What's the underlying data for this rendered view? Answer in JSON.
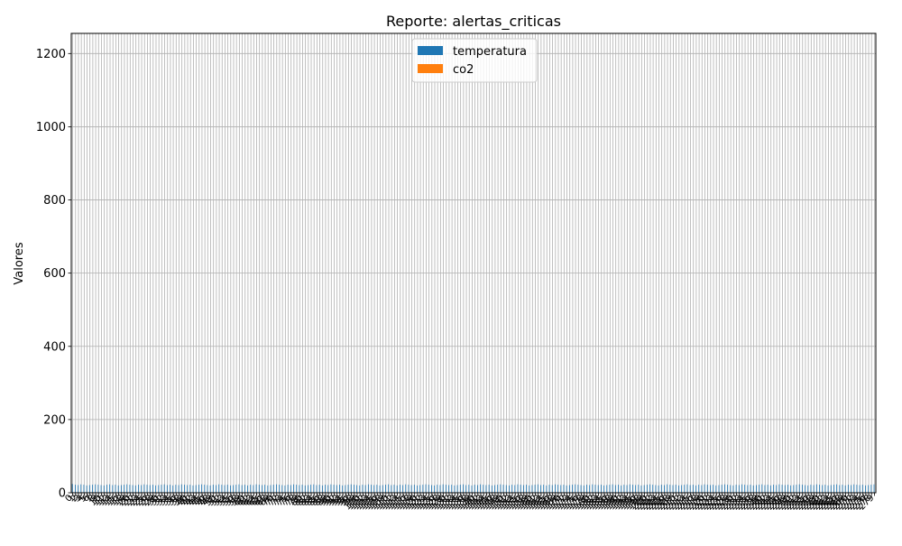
{
  "chart_data": {
    "type": "bar",
    "title": "Reporte: alertas_criticas",
    "xlabel": "",
    "ylabel": "Valores",
    "ylim": [
      0,
      1255
    ],
    "yticks": [
      0,
      200,
      400,
      600,
      800,
      1000,
      1200
    ],
    "grid": true,
    "legend_position": "top-center",
    "x_tick_rotation": 45,
    "categories": [
      "0",
      "1",
      "2",
      "3",
      "4",
      "5",
      "6",
      "7",
      "8",
      "9",
      "10",
      "11",
      "12",
      "13",
      "14",
      "15",
      "16",
      "17",
      "18",
      "19",
      "20",
      "21",
      "22",
      "23",
      "24",
      "25",
      "26",
      "27",
      "28",
      "29",
      "30",
      "31",
      "32",
      "33",
      "34",
      "35",
      "36",
      "37",
      "38",
      "39",
      "40",
      "41",
      "42",
      "43",
      "44",
      "45",
      "46",
      "47",
      "48",
      "49",
      "50",
      "51",
      "52",
      "53",
      "54",
      "55",
      "56",
      "57",
      "58",
      "59",
      "60",
      "61",
      "62",
      "63",
      "64",
      "65",
      "66",
      "67",
      "68",
      "69",
      "70",
      "71",
      "72",
      "73",
      "74",
      "75",
      "76",
      "77",
      "78",
      "79",
      "80",
      "81",
      "82",
      "83",
      "84",
      "85",
      "86",
      "87",
      "88",
      "89",
      "90",
      "91",
      "92",
      "93",
      "94",
      "95",
      "96",
      "97",
      "98",
      "99",
      "100",
      "101",
      "102",
      "103",
      "104",
      "105",
      "106",
      "107",
      "108",
      "109",
      "110",
      "111",
      "112",
      "113",
      "114",
      "115",
      "116",
      "117",
      "118",
      "119",
      "120",
      "121",
      "122",
      "123",
      "124",
      "125",
      "126",
      "127",
      "128",
      "129",
      "130",
      "131",
      "132",
      "133",
      "134",
      "135",
      "136",
      "137",
      "138",
      "139",
      "140",
      "141",
      "142",
      "143",
      "144",
      "145",
      "146",
      "147",
      "148",
      "149",
      "150",
      "151",
      "152",
      "153",
      "154",
      "155",
      "156",
      "157",
      "158",
      "159",
      "160",
      "161",
      "162",
      "163",
      "164",
      "165",
      "166",
      "167",
      "168",
      "169",
      "170",
      "171",
      "172",
      "173",
      "174",
      "175",
      "176",
      "177",
      "178",
      "179",
      "180",
      "181",
      "182",
      "183",
      "184",
      "185",
      "186",
      "187",
      "188",
      "189",
      "190",
      "191",
      "192",
      "193",
      "194",
      "195",
      "196",
      "197",
      "198",
      "199",
      "200",
      "201",
      "202",
      "203",
      "204",
      "205",
      "206",
      "207",
      "208",
      "209",
      "210",
      "211",
      "212",
      "213",
      "214",
      "215",
      "216",
      "217",
      "218",
      "219",
      "220",
      "221",
      "222",
      "223",
      "224",
      "225",
      "226",
      "227",
      "228",
      "229",
      "230",
      "231",
      "232",
      "233",
      "234",
      "235",
      "236",
      "237",
      "238",
      "239",
      "240",
      "241",
      "242",
      "243",
      "244",
      "245",
      "246",
      "247",
      "248",
      "249",
      "250",
      "251",
      "252",
      "253",
      "254",
      "255",
      "256",
      "257",
      "258",
      "259",
      "260",
      "261",
      "262",
      "263",
      "264",
      "265",
      "266",
      "267",
      "268",
      "269",
      "270",
      "271",
      "272",
      "273",
      "274",
      "275",
      "276",
      "277",
      "278",
      "279"
    ],
    "series": [
      {
        "name": "temperatura",
        "color": "#1f77b4",
        "values": [
          24,
          22,
          21,
          23,
          22,
          20,
          21,
          22,
          23,
          22,
          21,
          20,
          22,
          23,
          21,
          22,
          20,
          21,
          22,
          23,
          22,
          21,
          20,
          22,
          21,
          23,
          22,
          21,
          22,
          20,
          21,
          22,
          23,
          21,
          22,
          20,
          22,
          21,
          23,
          22,
          21,
          22,
          20,
          21,
          22,
          23,
          22,
          21,
          20,
          22,
          21,
          23,
          22,
          21,
          22,
          20,
          21,
          22,
          23,
          21,
          22,
          20,
          22,
          21,
          23,
          22,
          21,
          22,
          20,
          21,
          22,
          23,
          22,
          21,
          20,
          22,
          21,
          23,
          22,
          21,
          22,
          20,
          21,
          22,
          23,
          21,
          22,
          20,
          22,
          21,
          23,
          22,
          21,
          22,
          20,
          21,
          22,
          23,
          22,
          21,
          20,
          22,
          21,
          23,
          22,
          21,
          22,
          20,
          21,
          22,
          23,
          21,
          22,
          20,
          22,
          21,
          23,
          22,
          21,
          22,
          20,
          21,
          22,
          23,
          22,
          21,
          20,
          22,
          21,
          23,
          22,
          21,
          22,
          20,
          21,
          22,
          23,
          21,
          22,
          20,
          22,
          21,
          23,
          22,
          21,
          22,
          20,
          21,
          22,
          23,
          22,
          21,
          20,
          22,
          21,
          23,
          22,
          21,
          22,
          20,
          21,
          22,
          23,
          21,
          22,
          20,
          22,
          21,
          23,
          22,
          21,
          22,
          20,
          21,
          22,
          23,
          22,
          21,
          20,
          22,
          21,
          23,
          22,
          21,
          22,
          20,
          21,
          22,
          23,
          21,
          22,
          20,
          22,
          21,
          23,
          22,
          21,
          22,
          20,
          21,
          22,
          23,
          22,
          21,
          20,
          22,
          21,
          23,
          22,
          21,
          22,
          20,
          21,
          22,
          23,
          21,
          22,
          20,
          22,
          21,
          23,
          22,
          21,
          22,
          20,
          21,
          22,
          23,
          22,
          21,
          20,
          22,
          21,
          23,
          22,
          21,
          22,
          20,
          21,
          22,
          23,
          21,
          22,
          20,
          22,
          21,
          23,
          22,
          21,
          22,
          20,
          21,
          22,
          23,
          22,
          21,
          20,
          22,
          21,
          23,
          22,
          21,
          22,
          20,
          21,
          22,
          23,
          21,
          22,
          20,
          22,
          21,
          23,
          22,
          21,
          22,
          20,
          21,
          22,
          23
        ]
      },
      {
        "name": "co2",
        "color": "#ff7f0e",
        "values": [
          0,
          0,
          0,
          0,
          0,
          0,
          0,
          0,
          0,
          0,
          0,
          0,
          0,
          0,
          0,
          0,
          0,
          0,
          0,
          0,
          0,
          0,
          0,
          0,
          0,
          0,
          0,
          0,
          0,
          0,
          0,
          0,
          0,
          0,
          0,
          0,
          0,
          0,
          0,
          0,
          0,
          0,
          0,
          0,
          0,
          0,
          0,
          0,
          0,
          0,
          0,
          0,
          0,
          0,
          0,
          0,
          0,
          0,
          0,
          0,
          0,
          0,
          0,
          0,
          0,
          0,
          0,
          0,
          0,
          0,
          0,
          0,
          0,
          0,
          0,
          0,
          0,
          0,
          0,
          0,
          0,
          0,
          0,
          0,
          0,
          0,
          0,
          0,
          0,
          0,
          0,
          0,
          0,
          0,
          0,
          0,
          0,
          0,
          0,
          0,
          0,
          0,
          0,
          0,
          0,
          0,
          0,
          0,
          0,
          0,
          0,
          0,
          0,
          0,
          0,
          0,
          0,
          0,
          0,
          0,
          0,
          0,
          0,
          0,
          0,
          0,
          0,
          0,
          0,
          0,
          0,
          0,
          0,
          0,
          0,
          0,
          0,
          0,
          0,
          0,
          0,
          0,
          0,
          0,
          0,
          0,
          0,
          0,
          0,
          0,
          0,
          0,
          0,
          0,
          0,
          0,
          0,
          0,
          0,
          0,
          0,
          0,
          0,
          0,
          0,
          0,
          0,
          0,
          0,
          0,
          0,
          0,
          0,
          0,
          0,
          0,
          0,
          0,
          0,
          0,
          0,
          0,
          0,
          0,
          0,
          0,
          0,
          0,
          0,
          0,
          0,
          0,
          0,
          0,
          0,
          0,
          0,
          0,
          0,
          0,
          0,
          0,
          0,
          0,
          0,
          0,
          0,
          0,
          0,
          0,
          0,
          0,
          0,
          0,
          0,
          0,
          0,
          0,
          0,
          0,
          0,
          0,
          0,
          0,
          0,
          0,
          0,
          0,
          0,
          0,
          0,
          0,
          0,
          0,
          0,
          0,
          0,
          0,
          0,
          0,
          0,
          0,
          0,
          0,
          0,
          0,
          0,
          0,
          0,
          0,
          0,
          0,
          0,
          0,
          0,
          0,
          0,
          0,
          0,
          0,
          0,
          0,
          0,
          0,
          0,
          0,
          0,
          0,
          0,
          0,
          0,
          0,
          0,
          0,
          0,
          0,
          0,
          0,
          0,
          0
        ]
      }
    ]
  }
}
